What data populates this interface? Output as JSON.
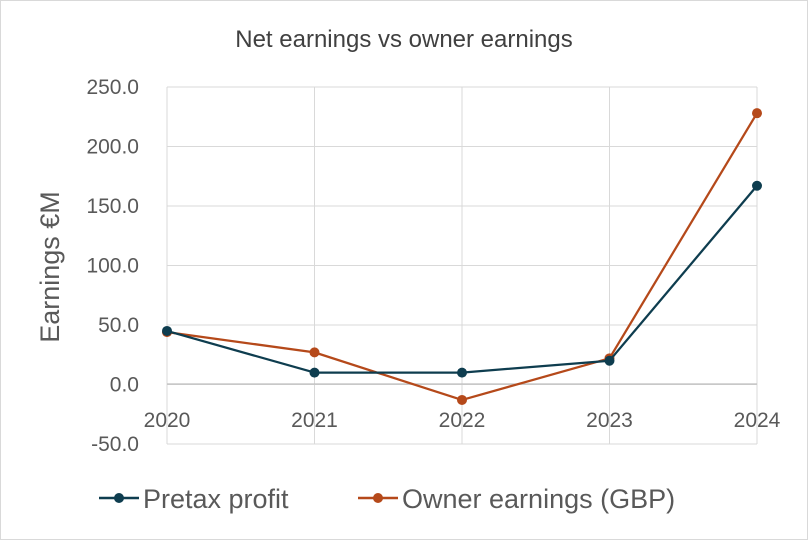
{
  "chart_data": {
    "type": "line",
    "title": "Net earnings vs owner earnings",
    "xlabel": "",
    "ylabel": "Earnings €M",
    "categories": [
      "2020",
      "2021",
      "2022",
      "2023",
      "2024"
    ],
    "ylim": [
      -50,
      250
    ],
    "yticks": [
      -50,
      0,
      50,
      100,
      150,
      200,
      250
    ],
    "ytick_labels": [
      "-50.0",
      "0.0",
      "50.0",
      "100.0",
      "150.0",
      "200.0",
      "250.0"
    ],
    "grid": true,
    "legend_position": "bottom",
    "series": [
      {
        "name": "Pretax profit",
        "color": "#0e3d4f",
        "values": [
          45,
          10,
          10,
          20,
          167
        ]
      },
      {
        "name": "Owner earnings (GBP)",
        "color": "#b5491a",
        "values": [
          44,
          27,
          -13,
          22,
          228
        ]
      }
    ]
  }
}
